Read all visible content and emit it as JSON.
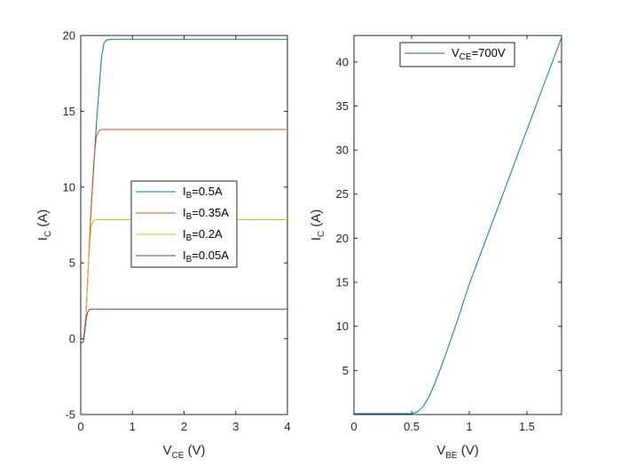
{
  "chart_data": [
    {
      "type": "line",
      "panel": "left",
      "xlabel_main": "V",
      "xlabel_sub": "CE",
      "xlabel_unit": " (V)",
      "ylabel_main": "I",
      "ylabel_sub": "C",
      "ylabel_unit": " (A)",
      "xlim": [
        0,
        4
      ],
      "ylim": [
        -5,
        20
      ],
      "xticks": [
        0,
        1,
        2,
        3,
        4
      ],
      "yticks": [
        -5,
        0,
        5,
        10,
        15,
        20
      ],
      "legend_position": "center",
      "series": [
        {
          "name": "I_B=0.5A",
          "legend_main": "I",
          "legend_sub": "B",
          "legend_rest": "=0.5A",
          "color": "#0072BD",
          "x": [
            0,
            0.05,
            0.1,
            0.15,
            0.2,
            0.3,
            0.4,
            0.45,
            0.5,
            0.6,
            1,
            2,
            3,
            4
          ],
          "y": [
            -0.3,
            -0.2,
            1.5,
            5,
            8.5,
            14,
            18.5,
            19.5,
            19.7,
            19.75,
            19.75,
            19.75,
            19.75,
            19.75
          ]
        },
        {
          "name": "I_B=0.35A",
          "legend_main": "I",
          "legend_sub": "B",
          "legend_rest": "=0.35A",
          "color": "#D95319",
          "x": [
            0,
            0.05,
            0.1,
            0.15,
            0.2,
            0.25,
            0.3,
            0.35,
            0.4,
            0.5,
            1,
            2,
            3,
            4
          ],
          "y": [
            -0.3,
            -0.2,
            1.5,
            5,
            8.5,
            11.5,
            13.3,
            13.7,
            13.8,
            13.8,
            13.8,
            13.8,
            13.8,
            13.8
          ]
        },
        {
          "name": "I_B=0.2A",
          "legend_main": "I",
          "legend_sub": "B",
          "legend_rest": "=0.2A",
          "color": "#EDB120",
          "x": [
            0,
            0.05,
            0.1,
            0.15,
            0.2,
            0.25,
            0.3,
            0.4,
            1,
            2,
            3,
            4
          ],
          "y": [
            -0.3,
            -0.2,
            1.5,
            5,
            7.4,
            7.8,
            7.85,
            7.85,
            7.85,
            7.85,
            7.85,
            7.85
          ]
        },
        {
          "name": "I_B=0.05A",
          "legend_main": "I",
          "legend_sub": "B",
          "legend_rest": "=0.05A",
          "color": "#7E2F8E",
          "x": [
            0,
            0.05,
            0.08,
            0.1,
            0.13,
            0.16,
            0.2,
            0.3,
            1,
            2,
            3,
            4
          ],
          "y": [
            -0.3,
            -0.2,
            0.5,
            1.2,
            1.7,
            1.9,
            1.95,
            1.95,
            1.95,
            1.95,
            1.95,
            1.95
          ]
        }
      ]
    },
    {
      "type": "line",
      "panel": "right",
      "xlabel_main": "V",
      "xlabel_sub": "BE",
      "xlabel_unit": " (V)",
      "ylabel_main": "I",
      "ylabel_sub": "C",
      "ylabel_unit": " (A)",
      "xlim": [
        0,
        1.8
      ],
      "ylim": [
        0,
        43
      ],
      "xticks": [
        0,
        0.5,
        1,
        1.5
      ],
      "yticks": [
        5,
        10,
        15,
        20,
        25,
        30,
        35,
        40
      ],
      "legend_position": "top",
      "series": [
        {
          "name": "V_CE=700V",
          "legend_main": "V",
          "legend_sub": "CE",
          "legend_rest": "=700V",
          "color": "#0072BD",
          "x": [
            0,
            0.5,
            0.55,
            0.6,
            0.65,
            0.7,
            0.75,
            0.8,
            0.9,
            1.0,
            1.2,
            1.4,
            1.6,
            1.8
          ],
          "y": [
            0.1,
            0.1,
            0.3,
            0.9,
            2.0,
            3.5,
            5.2,
            7.0,
            10.8,
            14.8,
            21.8,
            28.8,
            35.8,
            42.8
          ]
        }
      ]
    }
  ]
}
